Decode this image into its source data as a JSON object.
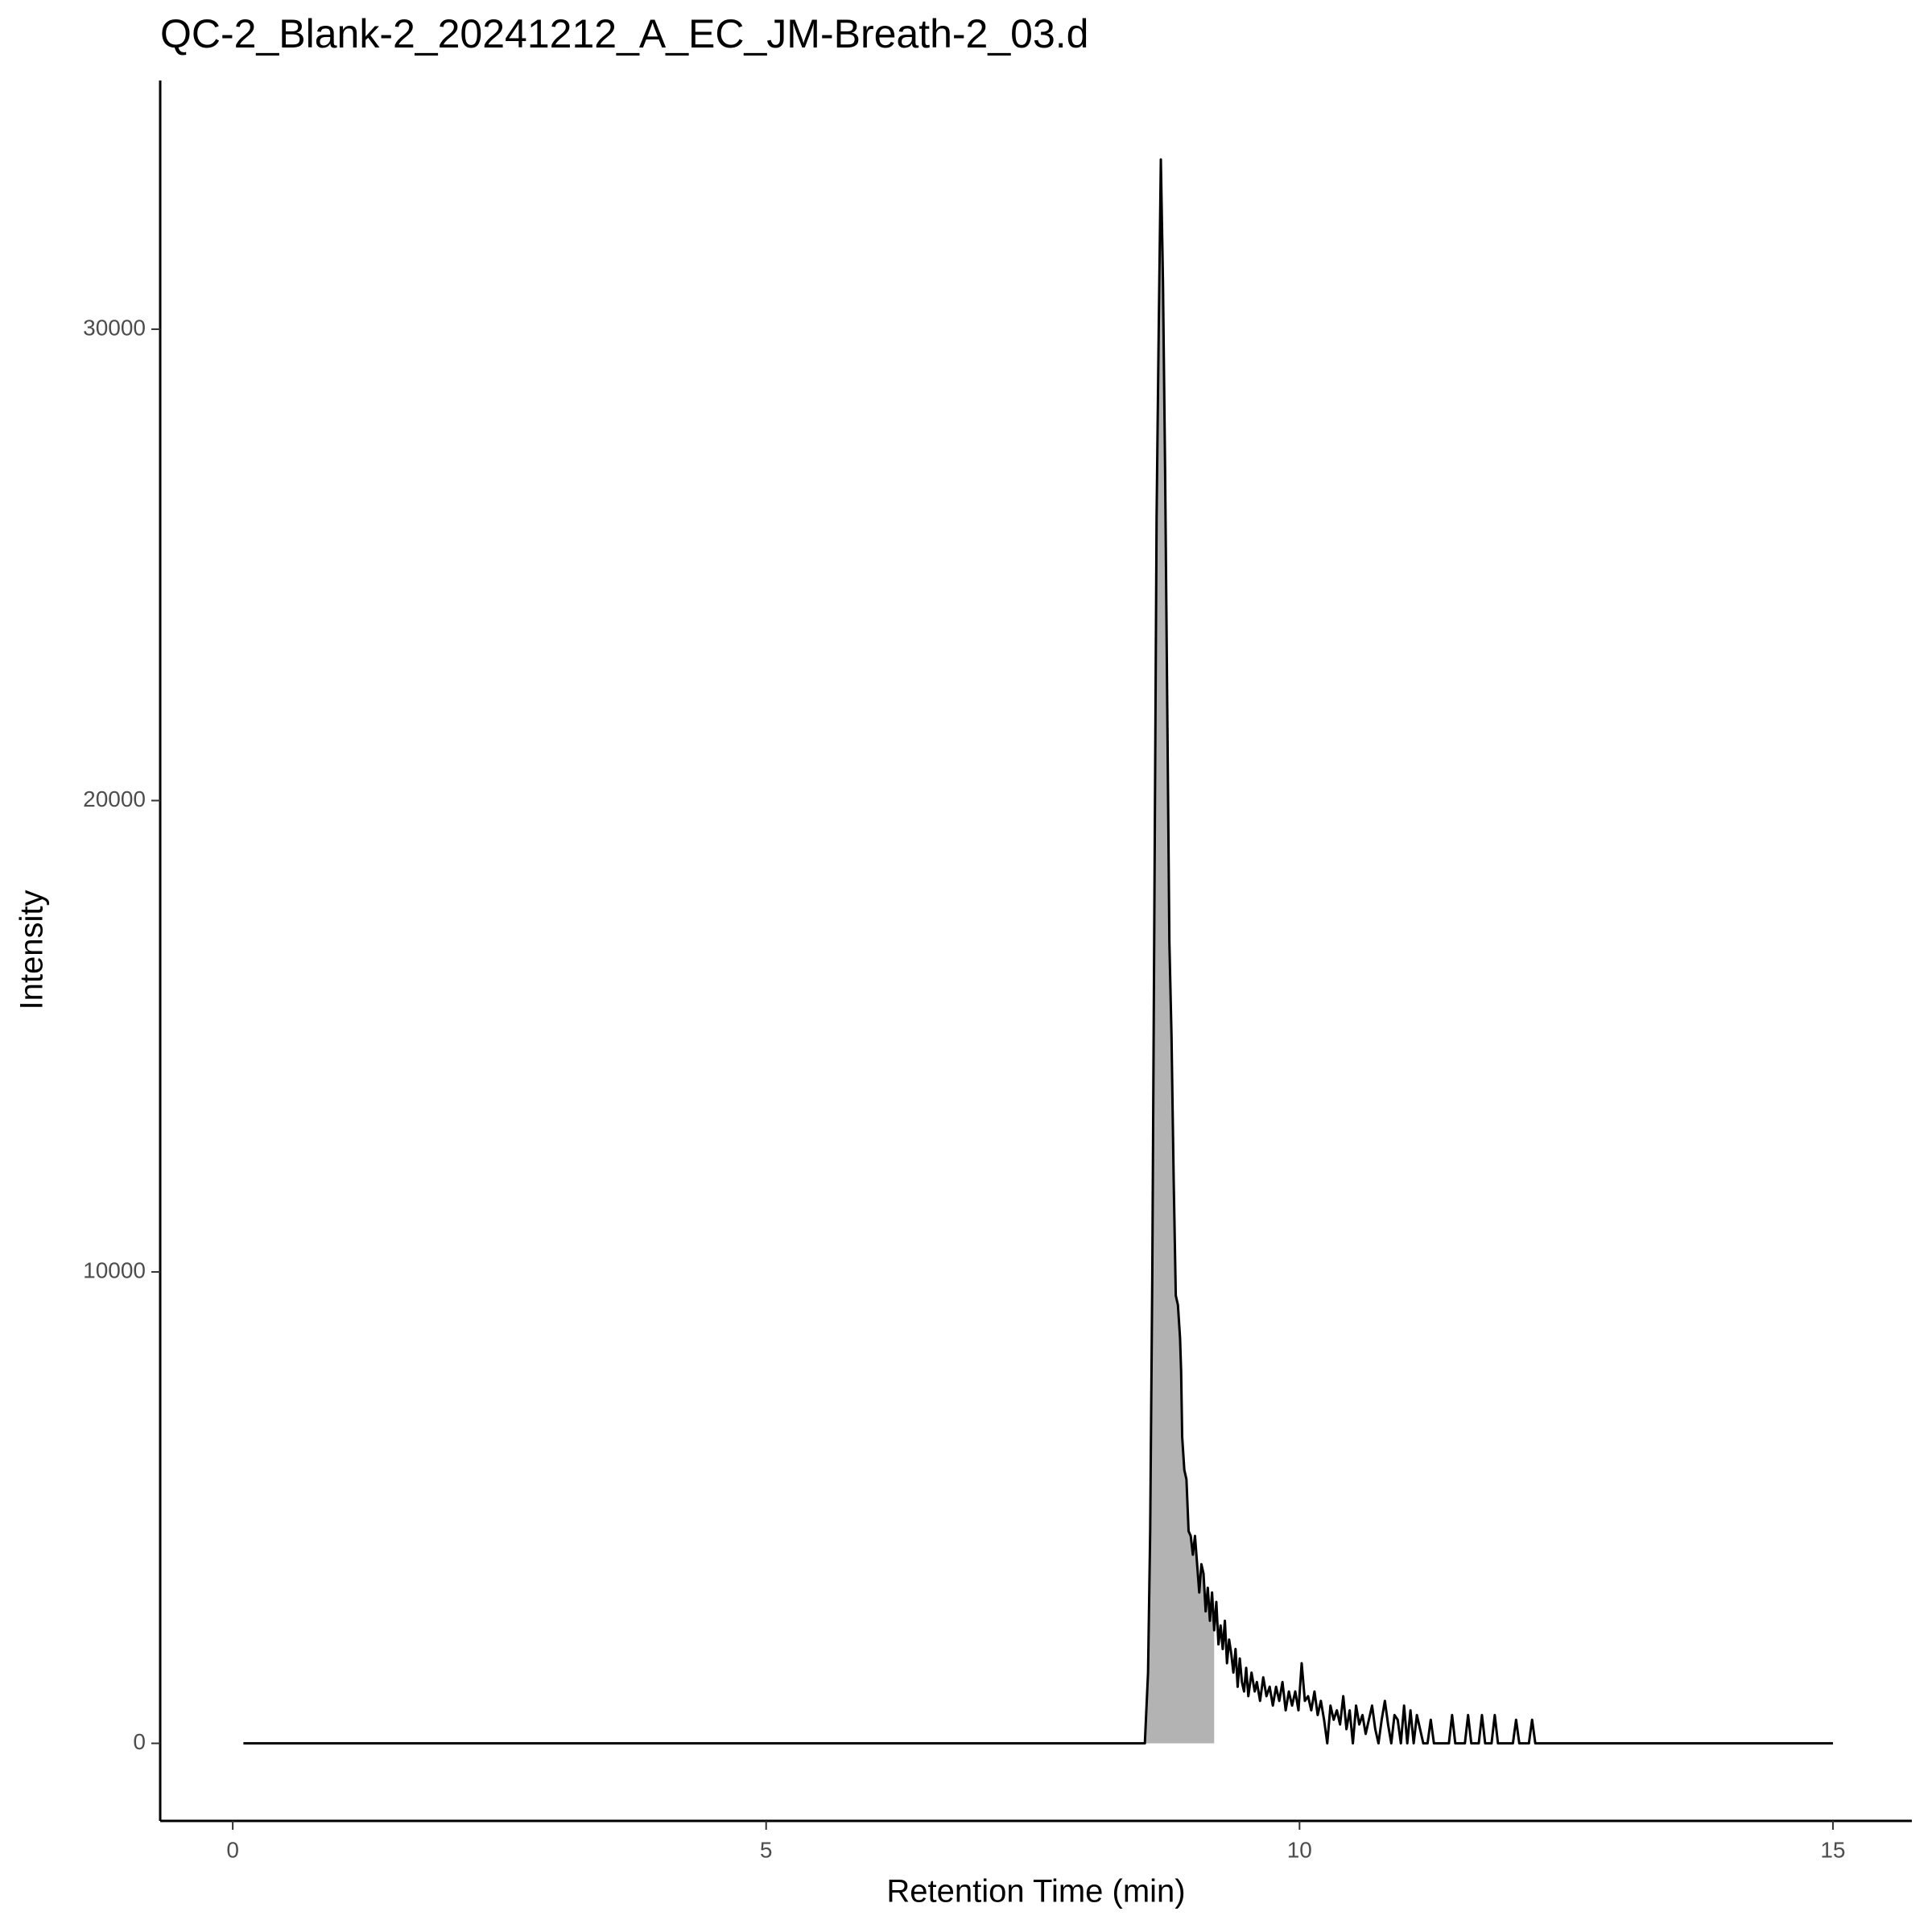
{
  "chart_data": {
    "type": "line",
    "title": "QC-2_Blank-2_20241212_A_EC_JM-Breath-2_03.d",
    "x_label": "Retention Time (min)",
    "y_label": "Intensity",
    "xlim": [
      -0.68,
      15.74
    ],
    "ylim": [
      -1646,
      35276
    ],
    "xticks": [
      0,
      5,
      10,
      15
    ],
    "yticks": [
      0,
      10000,
      20000,
      30000
    ],
    "grid": false,
    "color": "#000000",
    "shade_color": "#b3b3b3",
    "shaded_xrange": [
      8.55,
      9.2
    ],
    "x": [
      0.1,
      8.55,
      8.58,
      8.6,
      8.62,
      8.64,
      8.66,
      8.68,
      8.7,
      8.72,
      8.74,
      8.76,
      8.78,
      8.8,
      8.82,
      8.84,
      8.86,
      8.88,
      8.89,
      8.9,
      8.92,
      8.94,
      8.96,
      8.98,
      9.0,
      9.02,
      9.04,
      9.06,
      9.08,
      9.1,
      9.12,
      9.14,
      9.16,
      9.18,
      9.2,
      9.22,
      9.24,
      9.26,
      9.28,
      9.3,
      9.32,
      9.34,
      9.36,
      9.38,
      9.4,
      9.42,
      9.44,
      9.46,
      9.48,
      9.5,
      9.52,
      9.55,
      9.58,
      9.6,
      9.63,
      9.66,
      9.69,
      9.72,
      9.75,
      9.78,
      9.81,
      9.84,
      9.87,
      9.9,
      9.93,
      9.96,
      9.99,
      10.02,
      10.05,
      10.08,
      10.11,
      10.14,
      10.17,
      10.2,
      10.23,
      10.26,
      10.29,
      10.32,
      10.35,
      10.38,
      10.41,
      10.44,
      10.47,
      10.5,
      10.53,
      10.56,
      10.59,
      10.62,
      10.65,
      10.68,
      10.71,
      10.74,
      10.77,
      10.8,
      10.83,
      10.86,
      10.89,
      10.92,
      10.95,
      10.98,
      11.01,
      11.04,
      11.07,
      11.1,
      11.13,
      11.16,
      11.2,
      11.23,
      11.26,
      11.4,
      11.43,
      11.46,
      11.55,
      11.58,
      11.61,
      11.68,
      11.71,
      11.74,
      11.8,
      11.83,
      11.86,
      12.0,
      12.03,
      12.06,
      12.15,
      12.18,
      12.21,
      15.0
    ],
    "values": [
      0,
      0,
      1500,
      4500,
      10000,
      18000,
      26000,
      30000,
      33600,
      31000,
      27000,
      22000,
      17000,
      15000,
      12000,
      9500,
      9300,
      8600,
      7900,
      6500,
      5800,
      5600,
      4500,
      4400,
      4000,
      4400,
      3800,
      3200,
      3800,
      3600,
      2800,
      3300,
      2600,
      3200,
      2400,
      3000,
      2100,
      2500,
      2000,
      2600,
      1700,
      2200,
      1900,
      1500,
      2000,
      1200,
      1800,
      1300,
      1100,
      1600,
      1000,
      1500,
      1100,
      1300,
      900,
      1400,
      1000,
      1200,
      800,
      1200,
      900,
      1300,
      700,
      1100,
      800,
      1100,
      700,
      1700,
      900,
      1000,
      700,
      1100,
      600,
      900,
      500,
      0,
      800,
      500,
      700,
      400,
      1000,
      300,
      700,
      0,
      800,
      400,
      600,
      200,
      500,
      800,
      300,
      0,
      500,
      900,
      400,
      0,
      600,
      500,
      0,
      800,
      0,
      700,
      0,
      600,
      300,
      0,
      0,
      500,
      0,
      0,
      600,
      0,
      0,
      600,
      0,
      0,
      600,
      0,
      0,
      600,
      0,
      0,
      500,
      0,
      0,
      500,
      0,
      0
    ]
  }
}
